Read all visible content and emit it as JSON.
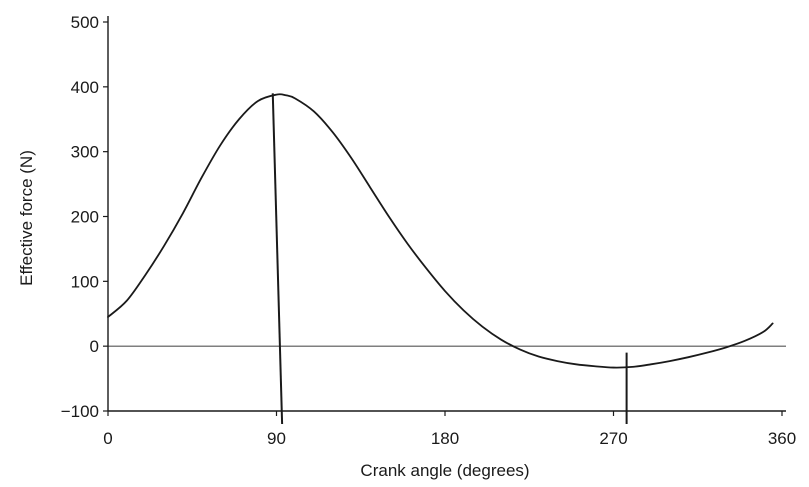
{
  "chart_data": {
    "type": "line",
    "title": "",
    "xlabel": "Crank angle (degrees)",
    "ylabel": "Effective force (N)",
    "xlim": [
      0,
      360
    ],
    "ylim": [
      -100,
      500
    ],
    "x_ticks": [
      0,
      90,
      180,
      270,
      360
    ],
    "x_tick_labels": [
      "0",
      "90",
      "180",
      "270",
      "360"
    ],
    "y_ticks": [
      -100,
      0,
      100,
      200,
      300,
      400,
      500
    ],
    "y_tick_labels": [
      "−100",
      "0",
      "100",
      "200",
      "300",
      "400",
      "500"
    ],
    "grid": false,
    "legend": "none",
    "reference_lines": [
      {
        "orientation": "horizontal",
        "value": 0
      }
    ],
    "marker_lines": [
      {
        "from": [
          88,
          390
        ],
        "to": [
          93,
          -120
        ]
      },
      {
        "from": [
          277,
          -10
        ],
        "to": [
          277,
          -120
        ]
      }
    ],
    "series": [
      {
        "x": [
          0,
          10,
          20,
          30,
          40,
          50,
          60,
          70,
          80,
          90,
          95,
          100,
          110,
          120,
          130,
          140,
          150,
          160,
          170,
          180,
          190,
          200,
          210,
          220,
          230,
          240,
          250,
          260,
          270,
          280,
          290,
          300,
          310,
          320,
          330,
          340,
          350,
          355
        ],
        "y": [
          45,
          70,
          110,
          155,
          205,
          260,
          310,
          350,
          378,
          388,
          387,
          382,
          362,
          330,
          290,
          245,
          200,
          158,
          120,
          85,
          55,
          30,
          10,
          -5,
          -16,
          -23,
          -28,
          -31,
          -33,
          -32,
          -28,
          -23,
          -17,
          -10,
          -2,
          8,
          22,
          35
        ]
      }
    ],
    "colors": {
      "line": "#1a1a1a",
      "reference_line": "#555555"
    }
  }
}
